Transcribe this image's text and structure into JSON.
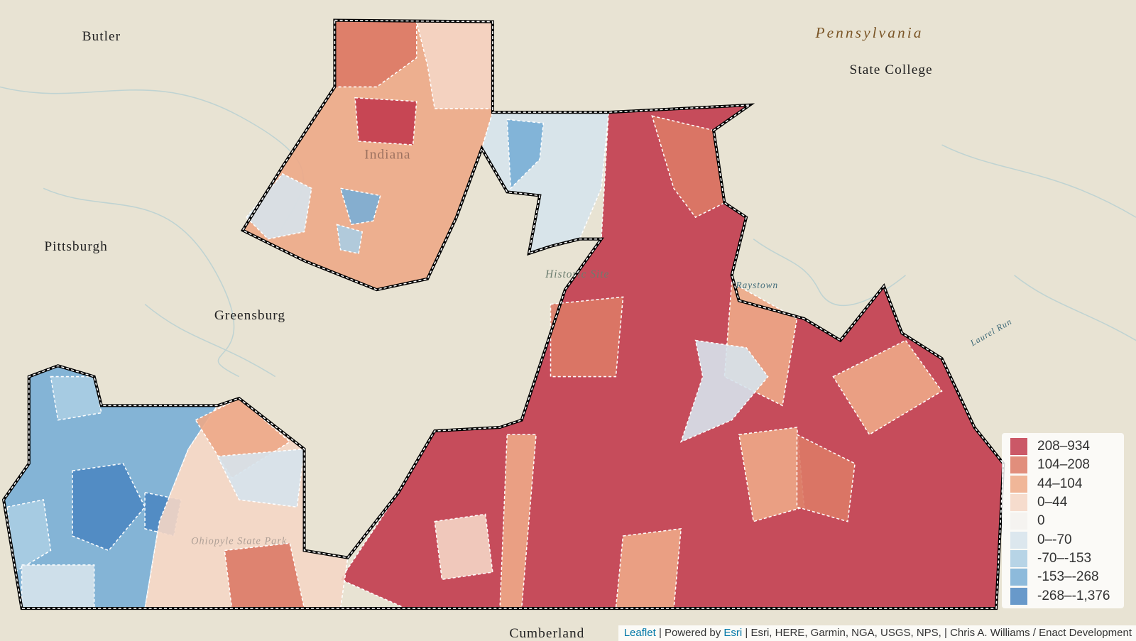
{
  "map": {
    "places": [
      {
        "label": "Butler"
      },
      {
        "label": "Pennsylvania"
      },
      {
        "label": "State College"
      },
      {
        "label": "Pittsburgh"
      },
      {
        "label": "Greensburg"
      },
      {
        "label": "Cumberland"
      },
      {
        "label": "Indiana"
      },
      {
        "label": "Historic Site"
      },
      {
        "label": "Raystown"
      },
      {
        "label": "Ohiopyle State Park"
      },
      {
        "label": "Laurel Run"
      }
    ]
  },
  "legend": {
    "items": [
      {
        "label": "208–934",
        "color": "#c23b4e"
      },
      {
        "label": "104–208",
        "color": "#dc7a66"
      },
      {
        "label": "44–104",
        "color": "#eda987"
      },
      {
        "label": "0–44",
        "color": "#f4d6c5"
      },
      {
        "label": "0",
        "color": "#f3f1ee"
      },
      {
        "label": "0–-70",
        "color": "#d6e3ec"
      },
      {
        "label": "-70–-153",
        "color": "#aacde3"
      },
      {
        "label": "-153–-268",
        "color": "#79aed6"
      },
      {
        "label": "-268–-1,376",
        "color": "#4d87c2"
      }
    ]
  },
  "attribution": {
    "leaflet": "Leaflet",
    "powered": "| Powered by",
    "esri": "Esri",
    "sources": "| Esri, HERE, Garmin, NGA, USGS, NPS, | Chris A. Williams / Enact Development"
  }
}
